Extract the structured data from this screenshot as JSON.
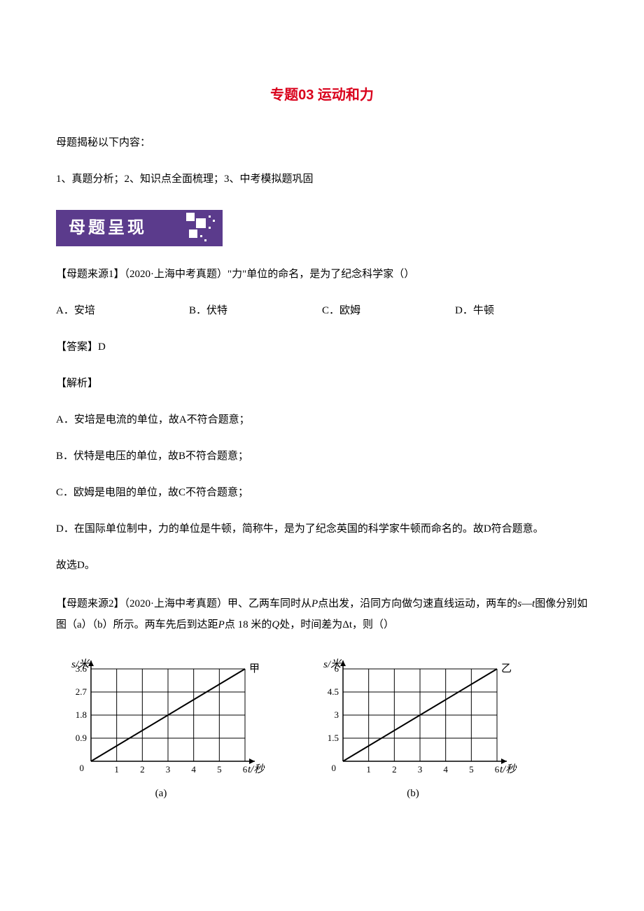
{
  "title": {
    "text": "专题03 运动和力",
    "color": "#d9001b",
    "fontsize": 20
  },
  "intro": "母题揭秘以下内容：",
  "outline": "1、真题分析；2、知识点全面梳理；3、中考模拟题巩固",
  "banner": {
    "text": "母题呈现",
    "bg": "#5b3b8c",
    "fg": "#ffffff"
  },
  "q1": {
    "stem": "【母题来源1】（2020·上海中考真题）\"力\"单位的命名，是为了纪念科学家（）",
    "options": {
      "A": "A．安培",
      "B": "B．伏特",
      "C": "C．欧姆",
      "D": "D．牛顿"
    },
    "answer": "【答案】D",
    "analysis_head": "【解析】",
    "analysis": [
      "A．安培是电流的单位，故A不符合题意；",
      "B．伏特是电压的单位，故B不符合题意；",
      "C．欧姆是电阻的单位，故C不符合题意；",
      "D．在国际单位制中，力的单位是牛顿，简称牛，是为了纪念英国的科学家牛顿而命名的。故D符合题意。",
      "故选D。"
    ]
  },
  "q2": {
    "stem_prefix": "【母题来源2】（2020·上海中考真题）甲、乙两车同时从",
    "stem_p1": "P",
    "stem_mid1": "点出发，沿同方向做匀速直线运动，两车的",
    "stem_s": "s",
    "stem_dash": "—",
    "stem_t": "t",
    "stem_mid2": "图像分别如图（a）（b）所示。两车先后到达距",
    "stem_p2": "P",
    "stem_mid3": "点 18 米的",
    "stem_q": "Q",
    "stem_mid4": "处，时间差为",
    "stem_dt": "Δt",
    "stem_end": "，则（）"
  },
  "charts": {
    "a": {
      "caption": "(a)",
      "series_label": "甲",
      "y_label": "s/米",
      "x_label": "t/秒",
      "y_ticks": [
        0,
        0.9,
        1.8,
        2.7,
        3.6
      ],
      "x_ticks": [
        0,
        1,
        2,
        3,
        4,
        5,
        6
      ],
      "line": {
        "x1": 0,
        "y1": 0,
        "x2": 6,
        "y2": 3.6
      },
      "xlim": [
        0,
        6
      ],
      "ylim": [
        0,
        3.6
      ],
      "grid_nx": 6,
      "grid_ny": 4,
      "axis_color": "#000000",
      "grid_color": "#000000",
      "line_color": "#000000",
      "line_width": 2,
      "tick_fontsize": 13,
      "label_fontsize": 15
    },
    "b": {
      "caption": "(b)",
      "series_label": "乙",
      "y_label": "s/米",
      "x_label": "t/秒",
      "y_ticks": [
        0,
        1.5,
        3.0,
        4.5,
        6.0
      ],
      "x_ticks": [
        0,
        1,
        2,
        3,
        4,
        5,
        6
      ],
      "line": {
        "x1": 0,
        "y1": 0,
        "x2": 6,
        "y2": 6.0
      },
      "xlim": [
        0,
        6
      ],
      "ylim": [
        0,
        6.0
      ],
      "grid_nx": 6,
      "grid_ny": 4,
      "axis_color": "#000000",
      "grid_color": "#000000",
      "line_color": "#000000",
      "line_width": 2,
      "tick_fontsize": 13,
      "label_fontsize": 15
    }
  }
}
